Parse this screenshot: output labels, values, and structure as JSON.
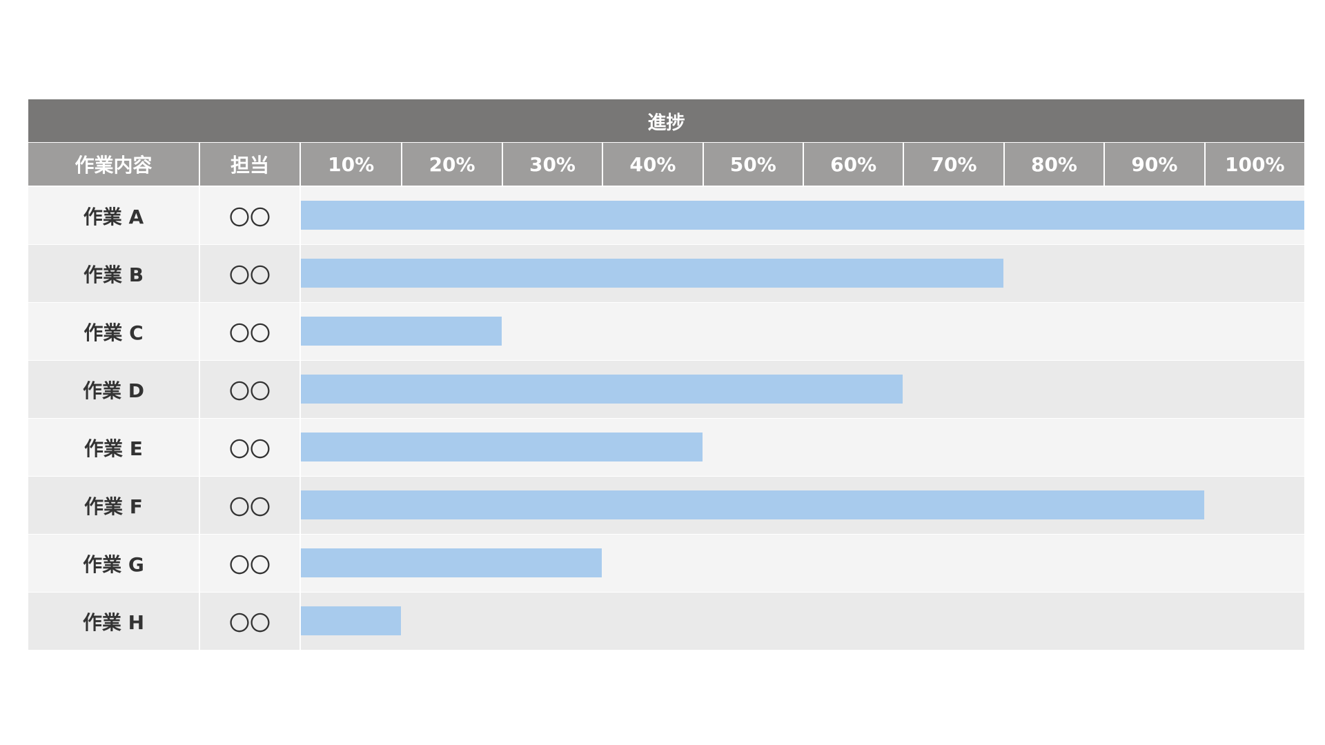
{
  "chart_data": {
    "type": "bar",
    "orientation": "horizontal",
    "title": "進捗",
    "columns": {
      "task": "作業内容",
      "owner": "担当"
    },
    "ticks": [
      "10%",
      "20%",
      "30%",
      "40%",
      "50%",
      "60%",
      "70%",
      "80%",
      "90%",
      "100%"
    ],
    "xlim": [
      0,
      100
    ],
    "rows": [
      {
        "task": "作業 A",
        "owner": "〇〇",
        "progress": 100
      },
      {
        "task": "作業 B",
        "owner": "〇〇",
        "progress": 70
      },
      {
        "task": "作業 C",
        "owner": "〇〇",
        "progress": 20
      },
      {
        "task": "作業 D",
        "owner": "〇〇",
        "progress": 60
      },
      {
        "task": "作業 E",
        "owner": "〇〇",
        "progress": 40
      },
      {
        "task": "作業 F",
        "owner": "〇〇",
        "progress": 90
      },
      {
        "task": "作業 G",
        "owner": "〇〇",
        "progress": 30
      },
      {
        "task": "作業 H",
        "owner": "〇〇",
        "progress": 10
      }
    ],
    "colors": {
      "title_bg": "#787776",
      "header_bg": "#9e9d9c",
      "row_light": "#f4f4f4",
      "row_dark": "#eaeaea",
      "bar": "#a8cbed"
    }
  }
}
